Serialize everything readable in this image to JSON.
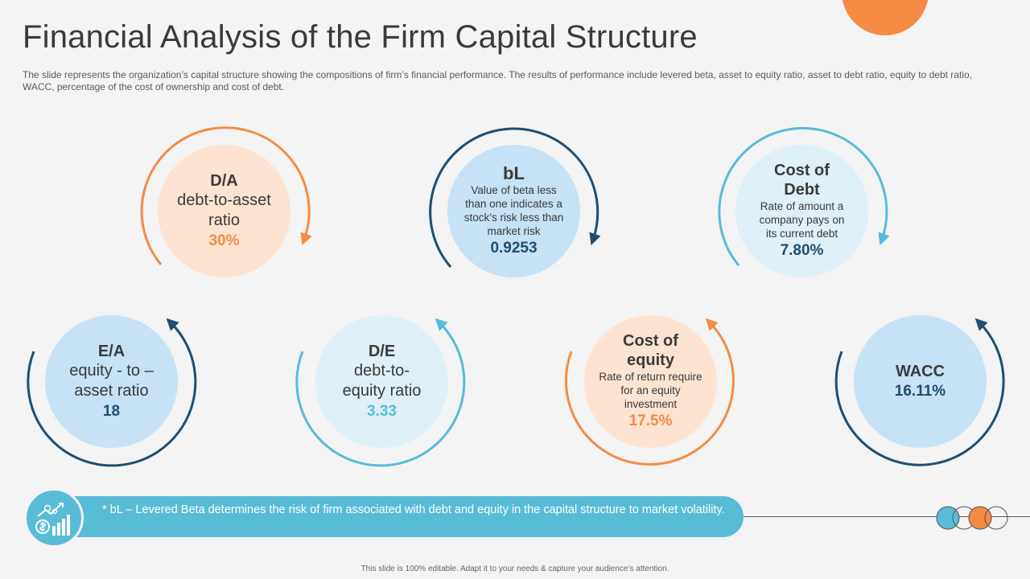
{
  "title": "Financial Analysis of the Firm Capital Structure",
  "subtitle": "The slide represents the organization’s capital structure showing the compositions of firm’s financial performance.  The results of performance  include levered  beta, asset to equity ratio, asset to debt ratio, equity to debt ratio, WACC, percentage  of the cost of ownership  and cost of debt.",
  "metrics": {
    "da": {
      "label": "D/A",
      "sub": "debt-to-asset ratio",
      "value": "30%"
    },
    "bl": {
      "label": "bL",
      "desc": "Value of beta less than one indicates a stock’s risk less than market risk",
      "value": "0.9253"
    },
    "cod": {
      "label": "Cost of Debt",
      "desc": "Rate of amount  a company pays on its current debt",
      "value": "7.80%"
    },
    "ea": {
      "label": "E/A",
      "sub": "equity - to – asset ratio",
      "value": "18"
    },
    "de": {
      "label": "D/E",
      "sub": "debt-to-equity  ratio",
      "value": "3.33"
    },
    "coe": {
      "label": "Cost of equity",
      "desc": "Rate of return require for an equity investment",
      "value": "17.5%"
    },
    "wacc": {
      "label": "WACC",
      "value": "16.11%"
    }
  },
  "banner": {
    "text": "* bL – Levered Beta determines the risk of firm associated with debt and equity in the capital structure  to market volatility."
  },
  "footer": "This slide is 100% editable.  Adapt it to your needs & capture your audience’s attention.",
  "colors": {
    "orange": "#f58b45",
    "navy": "#1f4e70",
    "teal": "#58bcd7",
    "light_orange_fill": "#fde3d2",
    "light_blue_fill": "#c6e2f4",
    "lighter_blue_fill": "#dff0f8"
  }
}
